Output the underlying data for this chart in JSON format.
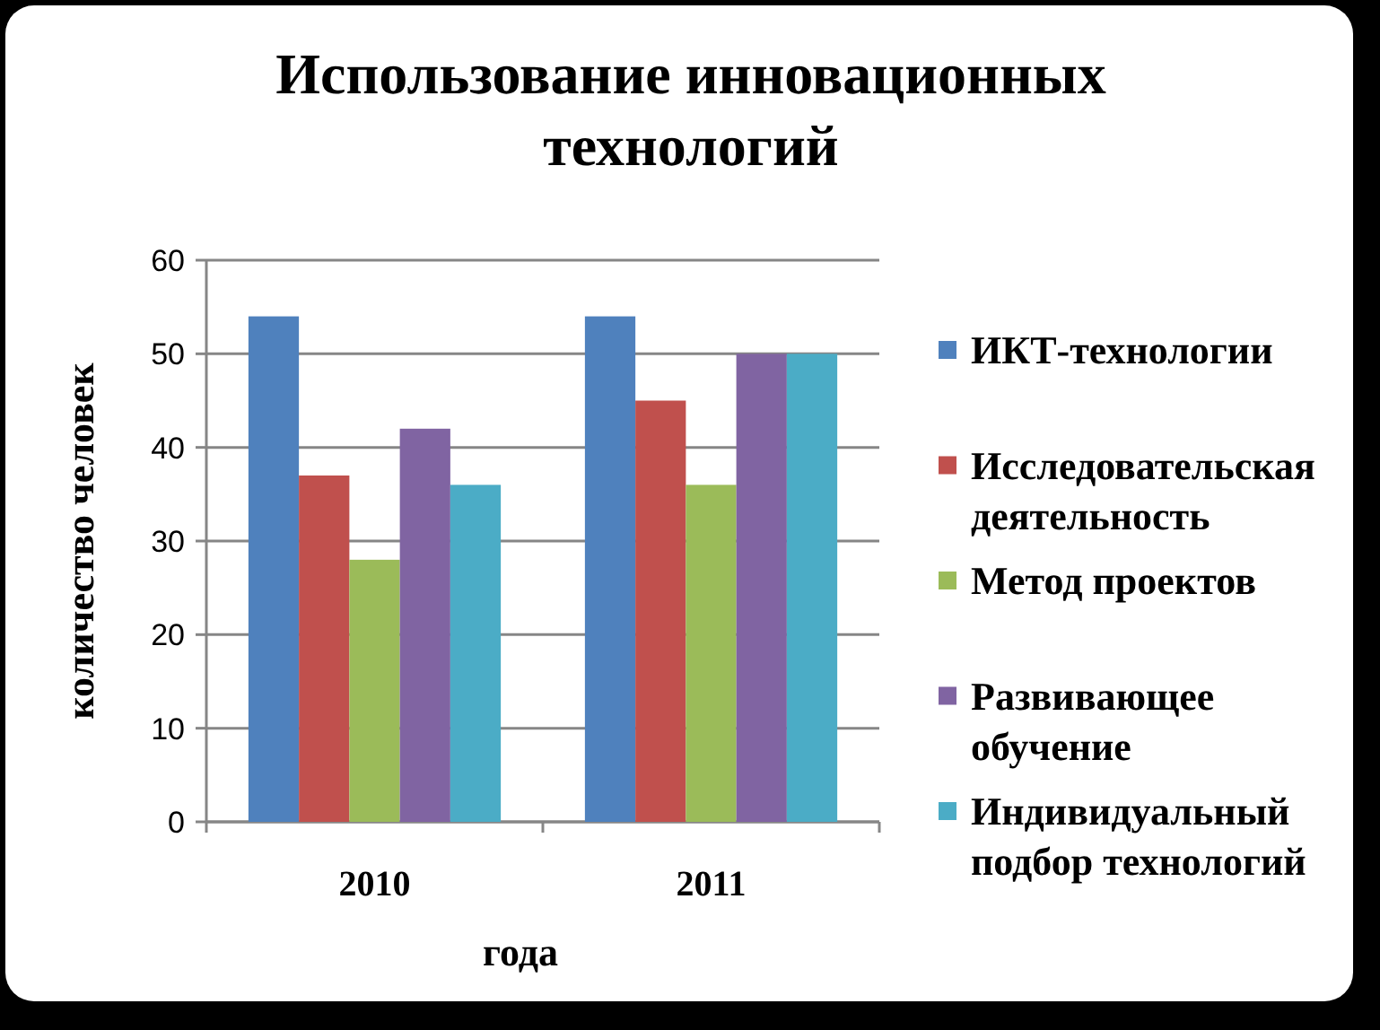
{
  "chart_data": {
    "type": "bar",
    "title": "Использование инновационных технологий",
    "xlabel": "года",
    "ylabel": "количество человек",
    "categories": [
      "2010",
      "2011"
    ],
    "series": [
      {
        "name": "ИКТ-технологии",
        "color": "#4f81bd",
        "values": [
          54,
          54
        ]
      },
      {
        "name": "Исследовательская деятельность",
        "color": "#c0504d",
        "values": [
          37,
          45
        ]
      },
      {
        "name": "Метод проектов",
        "color": "#9bbb59",
        "values": [
          28,
          36
        ]
      },
      {
        "name": "Развивающее обучение",
        "color": "#8064a2",
        "values": [
          42,
          50
        ]
      },
      {
        "name": "Индивидуальный подбор технологий",
        "color": "#4bacc6",
        "values": [
          36,
          50
        ]
      }
    ],
    "ylim": [
      0,
      60
    ],
    "yticks": [
      0,
      10,
      20,
      30,
      40,
      50,
      60
    ],
    "grid": "y",
    "legend": "right"
  }
}
